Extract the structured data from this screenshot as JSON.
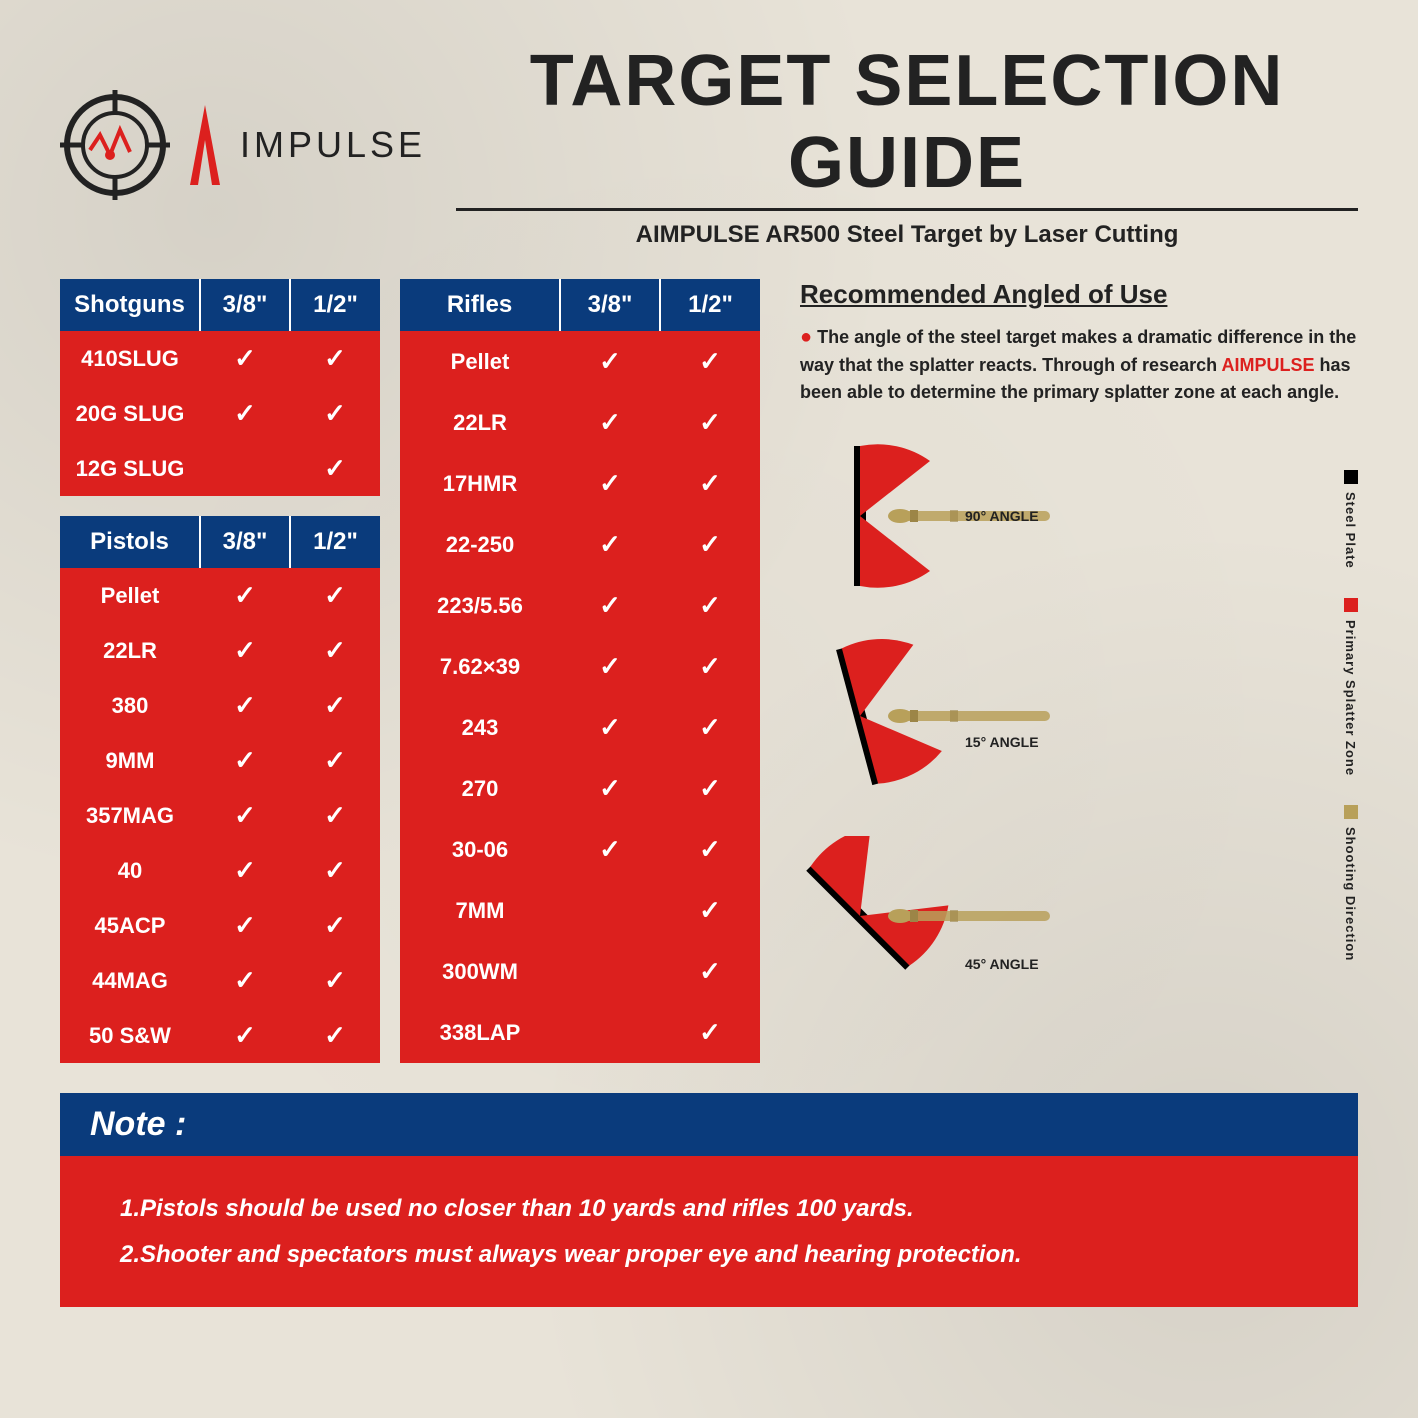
{
  "header": {
    "brand": "IMPULSE",
    "title": "TARGET SELECTION GUIDE",
    "subtitle": "AIMPULSE AR500 Steel Target by Laser Cutting"
  },
  "colors": {
    "header_bg": "#0a3b7c",
    "body_bg": "#dc201e",
    "page_bg": "#e8e3d8",
    "text": "#222222",
    "white": "#ffffff",
    "bullet": "#b8a05a"
  },
  "tables": {
    "shotguns": {
      "title": "Shotguns",
      "cols": [
        "3/8\"",
        "1/2\""
      ],
      "rows": [
        {
          "label": "410SLUG",
          "c1": true,
          "c2": true
        },
        {
          "label": "20G SLUG",
          "c1": true,
          "c2": true
        },
        {
          "label": "12G SLUG",
          "c1": false,
          "c2": true
        }
      ]
    },
    "pistols": {
      "title": "Pistols",
      "cols": [
        "3/8\"",
        "1/2\""
      ],
      "rows": [
        {
          "label": "Pellet",
          "c1": true,
          "c2": true
        },
        {
          "label": "22LR",
          "c1": true,
          "c2": true
        },
        {
          "label": "380",
          "c1": true,
          "c2": true
        },
        {
          "label": "9MM",
          "c1": true,
          "c2": true
        },
        {
          "label": "357MAG",
          "c1": true,
          "c2": true
        },
        {
          "label": "40",
          "c1": true,
          "c2": true
        },
        {
          "label": "45ACP",
          "c1": true,
          "c2": true
        },
        {
          "label": "44MAG",
          "c1": true,
          "c2": true
        },
        {
          "label": "50 S&W",
          "c1": true,
          "c2": true
        }
      ]
    },
    "rifles": {
      "title": "Rifles",
      "cols": [
        "3/8\"",
        "1/2\""
      ],
      "rows": [
        {
          "label": "Pellet",
          "c1": true,
          "c2": true
        },
        {
          "label": "22LR",
          "c1": true,
          "c2": true
        },
        {
          "label": "17HMR",
          "c1": true,
          "c2": true
        },
        {
          "label": "22-250",
          "c1": true,
          "c2": true
        },
        {
          "label": "223/5.56",
          "c1": true,
          "c2": true
        },
        {
          "label": "7.62×39",
          "c1": true,
          "c2": true
        },
        {
          "label": "243",
          "c1": true,
          "c2": true
        },
        {
          "label": "270",
          "c1": true,
          "c2": true
        },
        {
          "label": "30-06",
          "c1": true,
          "c2": true
        },
        {
          "label": "7MM",
          "c1": false,
          "c2": true
        },
        {
          "label": "300WM",
          "c1": false,
          "c2": true
        },
        {
          "label": "338LAP",
          "c1": false,
          "c2": true
        }
      ]
    }
  },
  "recommended": {
    "title": "Recommended Angled of Use",
    "text_pre": "The angle of the steel target makes a dramatic difference in the way that the splatter reacts. Through of research ",
    "brand": "AIMPULSE",
    "text_post": " has been able to determine the primary splatter zone at each angle.",
    "angles": [
      {
        "label": "90° ANGLE",
        "tilt": 0
      },
      {
        "label": "15° ANGLE",
        "tilt": 15
      },
      {
        "label": "45° ANGLE",
        "tilt": 45
      }
    ],
    "legend": [
      {
        "color": "#000000",
        "label": "Steel Plate"
      },
      {
        "color": "#dc201e",
        "label": "Primary Splatter Zone"
      },
      {
        "color": "#b8a05a",
        "label": "Shooting Direction"
      }
    ]
  },
  "note": {
    "header": "Note :",
    "lines": [
      "1.Pistols should be used no closer than 10 yards and rifles 100 yards.",
      "2.Shooter and spectators must always wear proper eye and hearing protection."
    ]
  }
}
